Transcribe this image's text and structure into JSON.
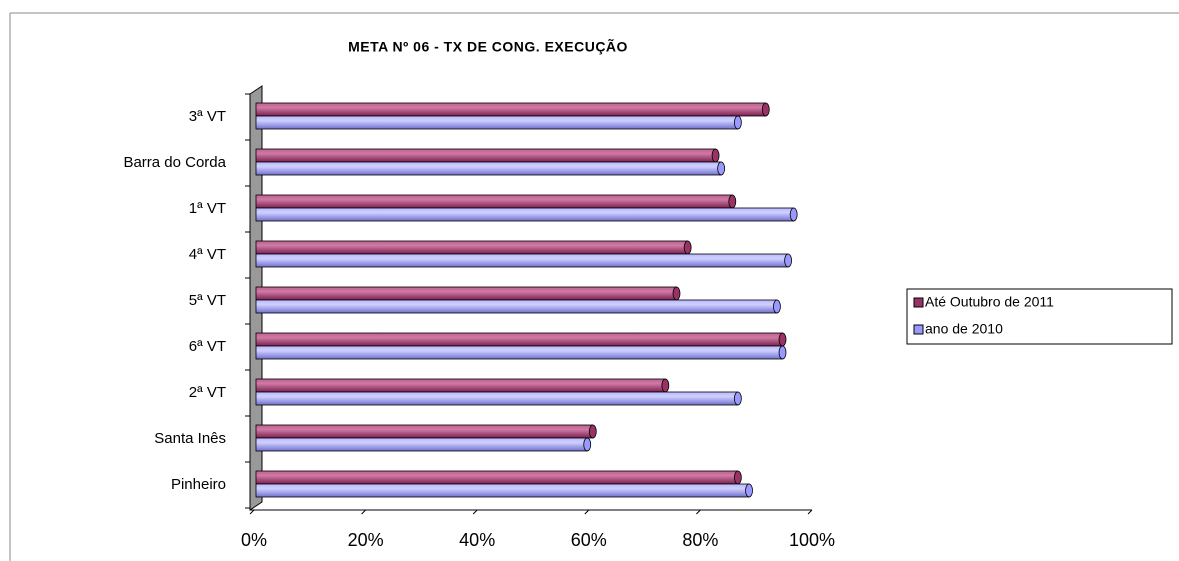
{
  "chart_data": {
    "type": "bar",
    "orientation": "horizontal",
    "title": "META Nº 06 - TX DE CONG. EXECUÇÃO",
    "categories": [
      "3ª VT",
      "Barra do Corda",
      "1ª VT",
      "4ª VT",
      "5ª VT",
      "6ª VT",
      "2ª VT",
      "Santa Inês",
      "Pinheiro"
    ],
    "series": [
      {
        "name": "Até Outubro de 2011",
        "color": "#993366",
        "values": [
          91,
          82,
          85,
          77,
          75,
          94,
          73,
          60,
          86
        ]
      },
      {
        "name": "ano de 2010",
        "color": "#9999ff",
        "values": [
          86,
          83,
          96,
          95,
          93,
          94,
          86,
          59,
          88
        ]
      }
    ],
    "xlim": [
      0,
      100
    ],
    "xticks": [
      {
        "value": 0,
        "label": "0%"
      },
      {
        "value": 20,
        "label": "20%"
      },
      {
        "value": 40,
        "label": "40%"
      },
      {
        "value": 60,
        "label": "60%"
      },
      {
        "value": 80,
        "label": "80%"
      },
      {
        "value": 100,
        "label": "100%"
      }
    ],
    "legend": "right"
  }
}
